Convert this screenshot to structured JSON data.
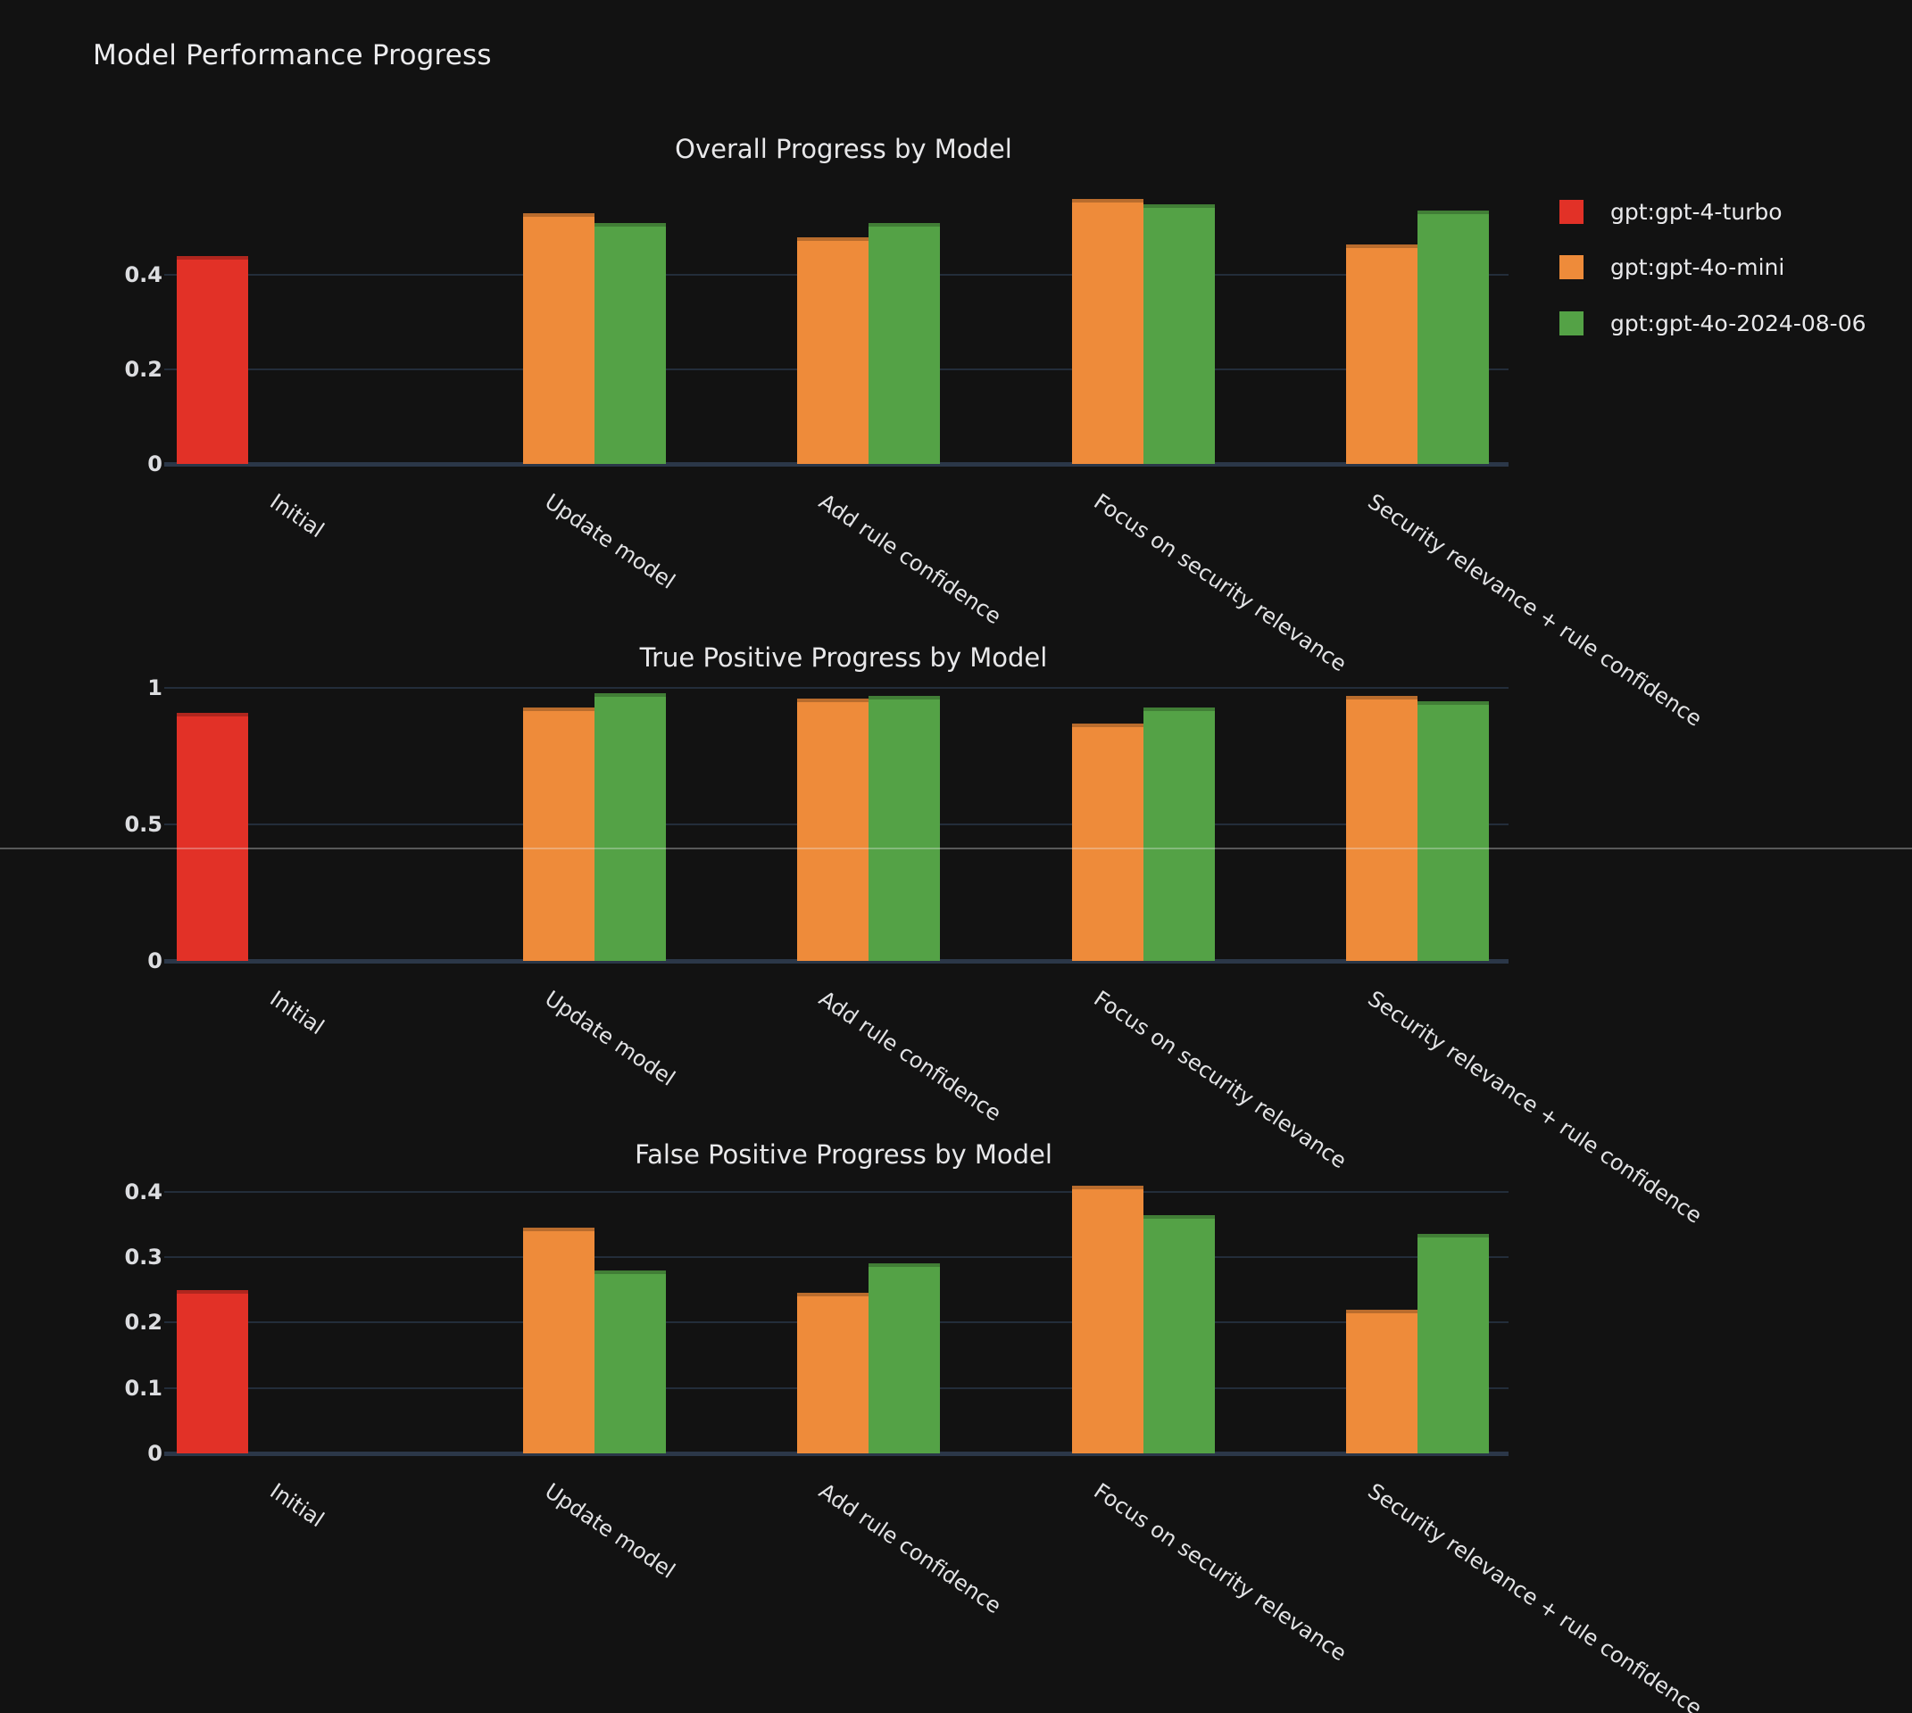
{
  "page_title": "Model Performance Progress",
  "legend": {
    "items": [
      {
        "label": "gpt:gpt-4-turbo",
        "color": "#e23127"
      },
      {
        "label": "gpt:gpt-4o-mini",
        "color": "#ee8b3a"
      },
      {
        "label": "gpt:gpt-4o-2024-08-06",
        "color": "#54a246"
      }
    ]
  },
  "colors": {
    "background": "#121212",
    "gridline": "#232d3a",
    "axis_baseline": "#2b3748",
    "text": "#e8e8ea",
    "series_red": "#e23127",
    "series_orange": "#ee8b3a",
    "series_green": "#54a246"
  },
  "chart_data": [
    {
      "type": "bar",
      "title": "Overall Progress by Model",
      "categories": [
        "Initial",
        "Update model",
        "Add rule confidence",
        "Focus on security relevance",
        "Security relevance + rule confidence"
      ],
      "yticks": [
        0,
        0.2,
        0.4
      ],
      "ylim": [
        0,
        0.6
      ],
      "grid": true,
      "legend_position": "top-right",
      "series": [
        {
          "name": "gpt:gpt-4-turbo",
          "color": "#e23127",
          "values": [
            0.44,
            null,
            null,
            null,
            null
          ]
        },
        {
          "name": "gpt:gpt-4o-mini",
          "color": "#ee8b3a",
          "values": [
            null,
            0.53,
            0.48,
            0.56,
            0.465
          ]
        },
        {
          "name": "gpt:gpt-4o-2024-08-06",
          "color": "#54a246",
          "values": [
            null,
            0.51,
            0.51,
            0.55,
            0.535
          ]
        }
      ]
    },
    {
      "type": "bar",
      "title": "True Positive Progress by Model",
      "categories": [
        "Initial",
        "Update model",
        "Add rule confidence",
        "Focus on security relevance",
        "Security relevance + rule confidence"
      ],
      "yticks": [
        0,
        0.5,
        1
      ],
      "ylim": [
        0,
        1.03
      ],
      "grid": true,
      "series": [
        {
          "name": "gpt:gpt-4-turbo",
          "color": "#e23127",
          "values": [
            0.91,
            null,
            null,
            null,
            null
          ]
        },
        {
          "name": "gpt:gpt-4o-mini",
          "color": "#ee8b3a",
          "values": [
            null,
            0.93,
            0.96,
            0.87,
            0.97
          ]
        },
        {
          "name": "gpt:gpt-4o-2024-08-06",
          "color": "#54a246",
          "values": [
            null,
            0.98,
            0.97,
            0.93,
            0.95
          ]
        }
      ]
    },
    {
      "type": "bar",
      "title": "False Positive Progress by Model",
      "categories": [
        "Initial",
        "Update model",
        "Add rule confidence",
        "Focus on security relevance",
        "Security relevance + rule confidence"
      ],
      "yticks": [
        0,
        0.1,
        0.2,
        0.3,
        0.4
      ],
      "ylim": [
        0,
        0.423
      ],
      "grid": true,
      "series": [
        {
          "name": "gpt:gpt-4-turbo",
          "color": "#e23127",
          "values": [
            0.25,
            null,
            null,
            null,
            null
          ]
        },
        {
          "name": "gpt:gpt-4o-mini",
          "color": "#ee8b3a",
          "values": [
            null,
            0.345,
            0.245,
            0.41,
            0.22
          ]
        },
        {
          "name": "gpt:gpt-4o-2024-08-06",
          "color": "#54a246",
          "values": [
            null,
            0.28,
            0.29,
            0.365,
            0.335
          ]
        }
      ]
    }
  ]
}
